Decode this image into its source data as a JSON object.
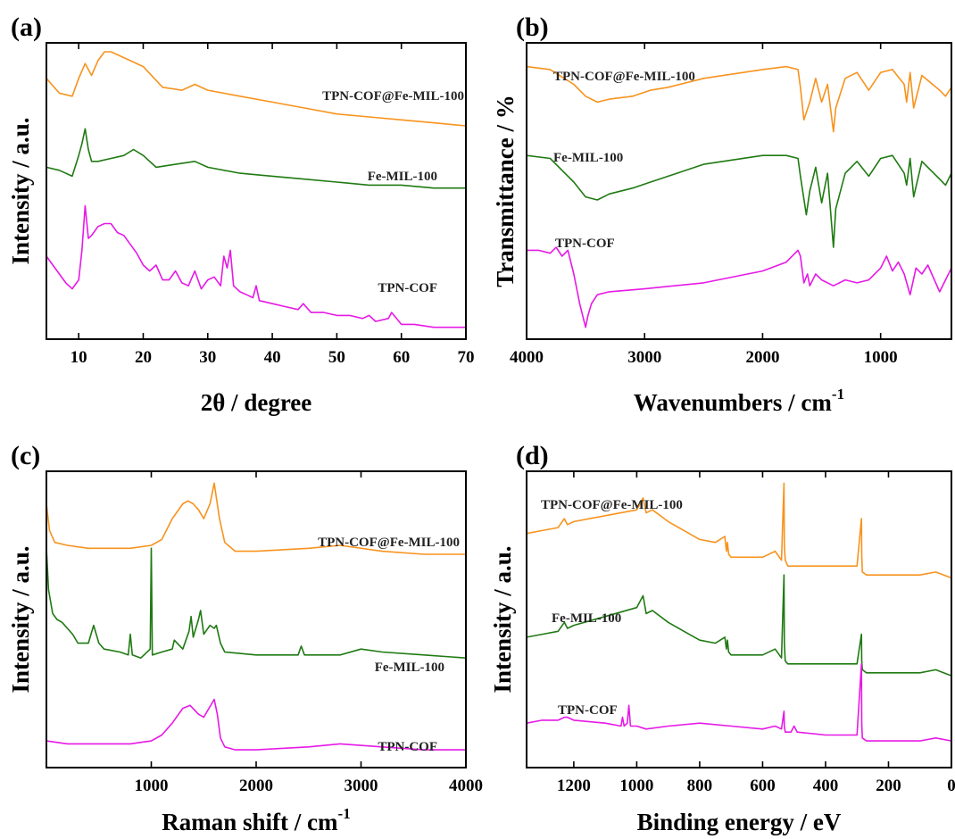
{
  "chart_data": [
    {
      "type": "line",
      "panel": "(a)",
      "xlabel": "2θ / degree",
      "xlabel_sup": "",
      "ylabel": "Intensity / a.u.",
      "xlim": [
        5,
        70
      ],
      "x_ticks": [
        10,
        20,
        30,
        40,
        50,
        60,
        70
      ],
      "y_ticks_shown": false,
      "series": [
        {
          "name": "TPN-COF@Fe-MIL-100",
          "color": "#f7931e",
          "x": [
            5,
            7,
            9,
            10,
            11,
            12,
            13,
            14,
            15,
            17,
            20,
            23,
            26,
            28,
            30,
            35,
            40,
            45,
            50,
            55,
            60,
            65,
            70
          ],
          "y": [
            0.88,
            0.83,
            0.82,
            0.88,
            0.93,
            0.89,
            0.94,
            0.97,
            0.97,
            0.95,
            0.92,
            0.85,
            0.84,
            0.86,
            0.84,
            0.82,
            0.8,
            0.78,
            0.76,
            0.75,
            0.74,
            0.73,
            0.72
          ]
        },
        {
          "name": "Fe-MIL-100",
          "color": "#1f7a12",
          "x": [
            5,
            7,
            9,
            10,
            10.5,
            11,
            11.5,
            12,
            13,
            15,
            17,
            18.5,
            20,
            22,
            25,
            28,
            30,
            35,
            40,
            45,
            50,
            55,
            60,
            65,
            70
          ],
          "y": [
            0.58,
            0.57,
            0.55,
            0.62,
            0.66,
            0.71,
            0.64,
            0.6,
            0.6,
            0.61,
            0.62,
            0.64,
            0.62,
            0.58,
            0.59,
            0.6,
            0.58,
            0.56,
            0.55,
            0.54,
            0.53,
            0.52,
            0.52,
            0.51,
            0.51
          ]
        },
        {
          "name": "TPN-COF",
          "color": "#e619e6",
          "x": [
            5,
            6,
            7,
            8,
            9,
            10,
            10.5,
            11,
            11.5,
            12,
            13,
            14,
            15,
            16,
            17,
            19,
            20,
            21,
            22,
            23,
            24,
            25,
            26,
            27,
            28,
            29,
            30,
            31,
            32,
            32.5,
            33,
            33.5,
            34,
            35,
            36,
            37,
            37.5,
            38,
            40,
            42,
            44,
            44.8,
            46,
            48,
            50,
            52,
            54,
            55,
            56,
            58,
            58.5,
            60,
            62,
            65,
            70
          ],
          "y": [
            0.28,
            0.25,
            0.22,
            0.19,
            0.17,
            0.2,
            0.3,
            0.45,
            0.34,
            0.35,
            0.38,
            0.39,
            0.39,
            0.36,
            0.35,
            0.29,
            0.25,
            0.23,
            0.25,
            0.2,
            0.2,
            0.23,
            0.19,
            0.18,
            0.23,
            0.17,
            0.2,
            0.21,
            0.18,
            0.28,
            0.24,
            0.3,
            0.18,
            0.16,
            0.15,
            0.14,
            0.18,
            0.13,
            0.12,
            0.11,
            0.1,
            0.12,
            0.09,
            0.09,
            0.08,
            0.08,
            0.07,
            0.08,
            0.06,
            0.07,
            0.09,
            0.05,
            0.05,
            0.04,
            0.04
          ]
        }
      ]
    },
    {
      "type": "line",
      "panel": "(b)",
      "xlabel": "Wavenumbers / cm",
      "xlabel_sup": "-1",
      "ylabel": "Transmittance / %",
      "xlim": [
        4000,
        400
      ],
      "x_ticks": [
        4000,
        3000,
        2000,
        1000
      ],
      "y_ticks_shown": false,
      "series": [
        {
          "name": "TPN-COF@Fe-MIL-100",
          "color": "#f7931e",
          "x": [
            4000,
            3800,
            3600,
            3500,
            3400,
            3300,
            3100,
            2950,
            2800,
            2500,
            2000,
            1800,
            1700,
            1680,
            1650,
            1600,
            1550,
            1500,
            1450,
            1400,
            1380,
            1300,
            1200,
            1100,
            1000,
            900,
            800,
            780,
            750,
            720,
            650,
            500,
            450,
            400
          ],
          "y": [
            0.92,
            0.91,
            0.86,
            0.82,
            0.8,
            0.81,
            0.82,
            0.84,
            0.85,
            0.88,
            0.91,
            0.92,
            0.91,
            0.85,
            0.74,
            0.8,
            0.88,
            0.8,
            0.86,
            0.7,
            0.78,
            0.88,
            0.9,
            0.84,
            0.9,
            0.91,
            0.86,
            0.8,
            0.9,
            0.78,
            0.89,
            0.84,
            0.82,
            0.85
          ]
        },
        {
          "name": "Fe-MIL-100",
          "color": "#1f7a12",
          "x": [
            4000,
            3800,
            3600,
            3500,
            3400,
            3300,
            3100,
            2950,
            2800,
            2500,
            2000,
            1800,
            1700,
            1680,
            1630,
            1600,
            1550,
            1500,
            1450,
            1400,
            1380,
            1300,
            1200,
            1100,
            1000,
            900,
            800,
            780,
            750,
            720,
            650,
            500,
            450,
            400
          ],
          "y": [
            0.62,
            0.61,
            0.53,
            0.48,
            0.47,
            0.49,
            0.51,
            0.53,
            0.55,
            0.59,
            0.62,
            0.62,
            0.61,
            0.55,
            0.42,
            0.5,
            0.58,
            0.46,
            0.56,
            0.31,
            0.44,
            0.56,
            0.6,
            0.55,
            0.61,
            0.62,
            0.56,
            0.52,
            0.61,
            0.48,
            0.6,
            0.54,
            0.52,
            0.56
          ]
        },
        {
          "name": "TPN-COF",
          "color": "#e619e6",
          "x": [
            4000,
            3900,
            3800,
            3750,
            3700,
            3650,
            3600,
            3550,
            3500,
            3480,
            3450,
            3400,
            3300,
            3000,
            2500,
            2000,
            1800,
            1700,
            1680,
            1650,
            1620,
            1600,
            1550,
            1500,
            1400,
            1300,
            1200,
            1100,
            1000,
            950,
            900,
            850,
            800,
            750,
            700,
            650,
            600,
            500,
            450,
            400
          ],
          "y": [
            0.3,
            0.3,
            0.29,
            0.31,
            0.28,
            0.3,
            0.22,
            0.12,
            0.04,
            0.08,
            0.12,
            0.15,
            0.16,
            0.17,
            0.19,
            0.23,
            0.26,
            0.3,
            0.28,
            0.19,
            0.22,
            0.18,
            0.22,
            0.2,
            0.18,
            0.2,
            0.19,
            0.2,
            0.24,
            0.28,
            0.23,
            0.26,
            0.22,
            0.15,
            0.24,
            0.22,
            0.25,
            0.16,
            0.2,
            0.24
          ]
        }
      ]
    },
    {
      "type": "line",
      "panel": "(c)",
      "xlabel": "Raman shift / cm",
      "xlabel_sup": "-1",
      "ylabel": "Intensity / a.u.",
      "xlim": [
        0,
        4000
      ],
      "x_ticks": [
        1000,
        2000,
        3000,
        4000
      ],
      "y_ticks_shown": false,
      "series": [
        {
          "name": "TPN-COF@Fe-MIL-100",
          "color": "#f7931e",
          "x": [
            0,
            30,
            80,
            200,
            400,
            600,
            800,
            1000,
            1100,
            1200,
            1300,
            1350,
            1400,
            1450,
            1500,
            1560,
            1600,
            1650,
            1700,
            1800,
            2000,
            2500,
            2800,
            3200,
            3600,
            4000
          ],
          "y": [
            0.89,
            0.8,
            0.76,
            0.75,
            0.74,
            0.74,
            0.74,
            0.75,
            0.77,
            0.84,
            0.89,
            0.9,
            0.89,
            0.87,
            0.84,
            0.89,
            0.96,
            0.84,
            0.76,
            0.73,
            0.73,
            0.74,
            0.75,
            0.73,
            0.72,
            0.72
          ]
        },
        {
          "name": "Fe-MIL-100",
          "color": "#1f7a12",
          "x": [
            0,
            20,
            60,
            100,
            150,
            200,
            250,
            300,
            400,
            450,
            500,
            550,
            700,
            780,
            800,
            820,
            900,
            990,
            1000,
            1010,
            1100,
            1200,
            1220,
            1300,
            1360,
            1380,
            1400,
            1450,
            1470,
            1500,
            1560,
            1600,
            1620,
            1660,
            1700,
            2000,
            2400,
            2430,
            2460,
            2800,
            3000,
            3200,
            3600,
            4000
          ],
          "y": [
            0.74,
            0.6,
            0.52,
            0.5,
            0.49,
            0.47,
            0.45,
            0.42,
            0.42,
            0.48,
            0.42,
            0.4,
            0.39,
            0.38,
            0.45,
            0.38,
            0.37,
            0.4,
            0.74,
            0.38,
            0.39,
            0.4,
            0.43,
            0.4,
            0.46,
            0.51,
            0.44,
            0.5,
            0.53,
            0.45,
            0.48,
            0.47,
            0.48,
            0.42,
            0.39,
            0.38,
            0.38,
            0.41,
            0.38,
            0.38,
            0.4,
            0.39,
            0.38,
            0.37
          ]
        },
        {
          "name": "TPN-COF",
          "color": "#e619e6",
          "x": [
            0,
            200,
            400,
            600,
            800,
            1000,
            1100,
            1200,
            1300,
            1370,
            1450,
            1500,
            1550,
            1600,
            1630,
            1660,
            1700,
            1800,
            2000,
            2500,
            2800,
            3200,
            3600,
            4000
          ],
          "y": [
            0.09,
            0.08,
            0.08,
            0.08,
            0.08,
            0.09,
            0.11,
            0.15,
            0.2,
            0.21,
            0.18,
            0.17,
            0.2,
            0.23,
            0.18,
            0.1,
            0.07,
            0.06,
            0.06,
            0.07,
            0.08,
            0.07,
            0.06,
            0.06
          ]
        }
      ]
    },
    {
      "type": "line",
      "panel": "(d)",
      "xlabel": "Binding energy / eV",
      "xlabel_sup": "",
      "ylabel": "Intensity / a.u.",
      "xlim": [
        1350,
        0
      ],
      "x_ticks": [
        1200,
        1000,
        800,
        600,
        400,
        200,
        0
      ],
      "y_ticks_shown": false,
      "series": [
        {
          "name": "TPN-COF@Fe-MIL-100",
          "color": "#f7931e",
          "x": [
            1350,
            1300,
            1250,
            1230,
            1220,
            1200,
            1100,
            1000,
            980,
            970,
            950,
            900,
            850,
            800,
            750,
            720,
            715,
            712,
            708,
            700,
            600,
            560,
            540,
            532,
            531,
            528,
            520,
            400,
            300,
            286,
            285,
            283,
            270,
            100,
            50,
            0
          ],
          "y": [
            0.79,
            0.8,
            0.81,
            0.84,
            0.82,
            0.83,
            0.85,
            0.87,
            0.91,
            0.86,
            0.87,
            0.83,
            0.8,
            0.77,
            0.76,
            0.78,
            0.73,
            0.76,
            0.72,
            0.71,
            0.71,
            0.73,
            0.7,
            0.96,
            0.75,
            0.7,
            0.68,
            0.68,
            0.68,
            0.84,
            0.72,
            0.66,
            0.65,
            0.65,
            0.66,
            0.64
          ]
        },
        {
          "name": "Fe-MIL-100",
          "color": "#1f7a12",
          "x": [
            1350,
            1300,
            1250,
            1230,
            1220,
            1200,
            1100,
            1000,
            980,
            970,
            950,
            900,
            850,
            800,
            750,
            720,
            715,
            712,
            708,
            700,
            600,
            560,
            540,
            532,
            531,
            528,
            520,
            400,
            300,
            286,
            285,
            283,
            270,
            100,
            50,
            0
          ],
          "y": [
            0.44,
            0.45,
            0.46,
            0.49,
            0.47,
            0.48,
            0.51,
            0.54,
            0.58,
            0.52,
            0.53,
            0.49,
            0.46,
            0.43,
            0.42,
            0.44,
            0.4,
            0.43,
            0.39,
            0.38,
            0.38,
            0.4,
            0.37,
            0.65,
            0.42,
            0.36,
            0.35,
            0.35,
            0.35,
            0.45,
            0.36,
            0.33,
            0.32,
            0.32,
            0.33,
            0.31
          ]
        },
        {
          "name": "TPN-COF",
          "color": "#e619e6",
          "x": [
            1350,
            1300,
            1250,
            1230,
            1220,
            1200,
            1100,
            1050,
            1045,
            1040,
            1030,
            1025,
            1020,
            1000,
            970,
            900,
            800,
            700,
            600,
            560,
            540,
            532,
            531,
            528,
            510,
            500,
            490,
            400,
            300,
            286,
            285,
            283,
            270,
            100,
            50,
            0
          ],
          "y": [
            0.15,
            0.16,
            0.16,
            0.17,
            0.17,
            0.16,
            0.15,
            0.14,
            0.17,
            0.14,
            0.15,
            0.21,
            0.14,
            0.14,
            0.13,
            0.14,
            0.15,
            0.14,
            0.13,
            0.14,
            0.13,
            0.19,
            0.14,
            0.12,
            0.12,
            0.14,
            0.12,
            0.11,
            0.11,
            0.35,
            0.15,
            0.1,
            0.09,
            0.09,
            0.1,
            0.09
          ]
        }
      ]
    }
  ]
}
